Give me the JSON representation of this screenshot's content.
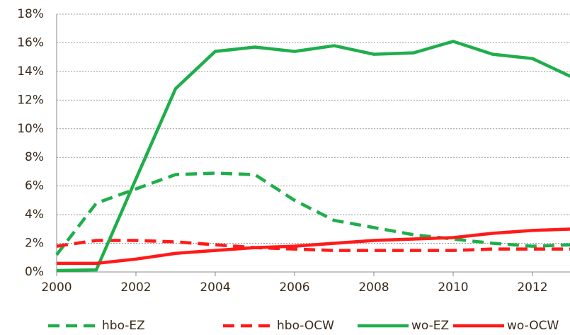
{
  "chart_data": {
    "type": "line",
    "x": [
      2000,
      2001,
      2002,
      2003,
      2004,
      2005,
      2006,
      2007,
      2008,
      2009,
      2010,
      2011,
      2012,
      2013
    ],
    "series": [
      {
        "name": "hbo-EZ",
        "color": "#1fae4b",
        "dashed": true,
        "values": [
          1.2,
          4.8,
          5.8,
          6.8,
          6.9,
          6.8,
          5.0,
          3.6,
          3.1,
          2.6,
          2.3,
          2.0,
          1.8,
          1.9
        ]
      },
      {
        "name": "hbo-OCW",
        "color": "#ff1a1a",
        "dashed": true,
        "values": [
          1.8,
          2.2,
          2.2,
          2.1,
          1.9,
          1.7,
          1.6,
          1.5,
          1.5,
          1.5,
          1.5,
          1.6,
          1.6,
          1.6
        ]
      },
      {
        "name": "wo-EZ",
        "color": "#1fae4b",
        "dashed": false,
        "values": [
          0.1,
          0.15,
          6.5,
          12.8,
          15.4,
          15.7,
          15.4,
          15.8,
          15.2,
          15.3,
          16.1,
          15.2,
          14.9,
          13.6
        ]
      },
      {
        "name": "wo-OCW",
        "color": "#ff1a1a",
        "dashed": false,
        "values": [
          0.6,
          0.6,
          0.9,
          1.3,
          1.5,
          1.7,
          1.8,
          2.0,
          2.2,
          2.3,
          2.4,
          2.7,
          2.9,
          3.0
        ]
      }
    ],
    "xlim": [
      2000,
      2013
    ],
    "xticks": [
      2000,
      2002,
      2004,
      2006,
      2008,
      2010,
      2012
    ],
    "ylim": [
      0,
      18
    ],
    "yticks": [
      {
        "value": 0,
        "label": "0%"
      },
      {
        "value": 2,
        "label": "2%"
      },
      {
        "value": 4,
        "label": "4%"
      },
      {
        "value": 6,
        "label": "6%"
      },
      {
        "value": 8,
        "label": "8%"
      },
      {
        "value": 10,
        "label": "10%"
      },
      {
        "value": 12,
        "label": "12%"
      },
      {
        "value": 14,
        "label": "14%"
      },
      {
        "value": 16,
        "label": "16%"
      },
      {
        "value": 18,
        "label": "18%"
      }
    ],
    "grid": true,
    "legend": "bottom"
  }
}
